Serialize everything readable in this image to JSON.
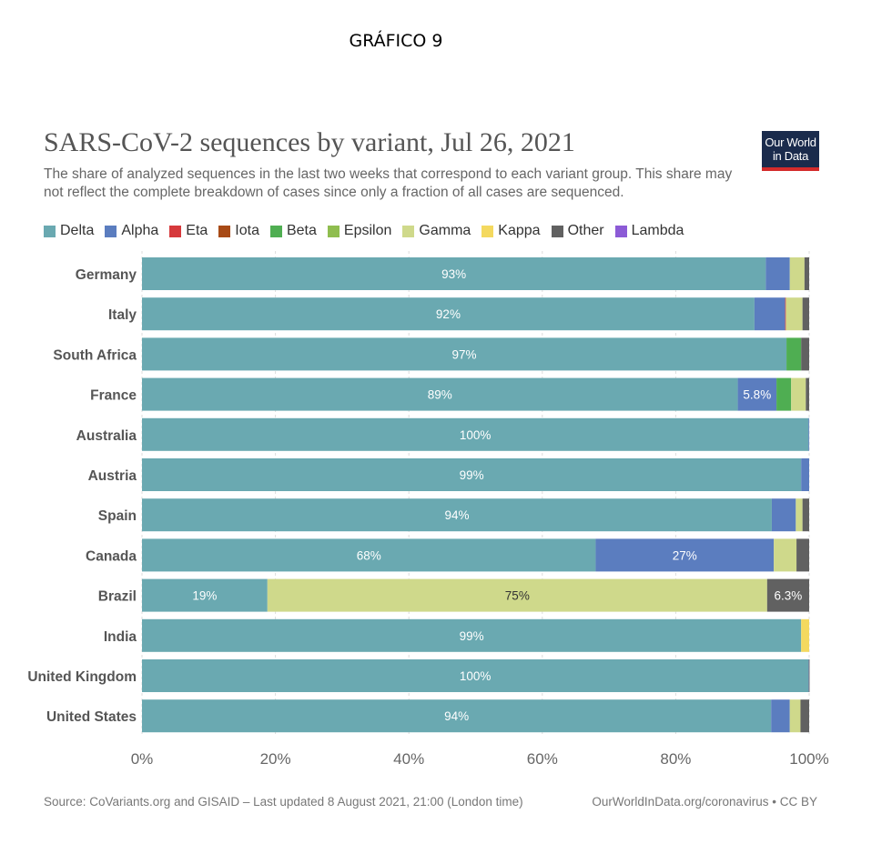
{
  "page": {
    "heading": "GRÁFICO 9"
  },
  "logo": {
    "line1": "Our World",
    "line2": "in Data"
  },
  "footer": {
    "source": "Source: CoVariants.org and GISAID – Last updated 8 August 2021, 21:00 (London time)",
    "credit": "OurWorldInData.org/coronavirus • CC BY"
  },
  "chart_data": {
    "type": "bar",
    "orientation": "horizontal",
    "stacked": true,
    "title": "SARS-CoV-2 sequences by variant, Jul 26, 2021",
    "subtitle": "The share of analyzed sequences in the last two weeks that correspond to each variant group. This share may not reflect the complete breakdown of cases since only a fraction of all cases are sequenced.",
    "legend_position": "top",
    "xlim": [
      0,
      100
    ],
    "x_ticks": [
      0,
      20,
      40,
      60,
      80,
      100
    ],
    "x_tick_labels": [
      "0%",
      "20%",
      "40%",
      "60%",
      "80%",
      "100%"
    ],
    "grid": "vertical-dashed",
    "categories": [
      "Germany",
      "Italy",
      "South Africa",
      "France",
      "Australia",
      "Austria",
      "Spain",
      "Canada",
      "Brazil",
      "India",
      "United Kingdom",
      "United States"
    ],
    "series": [
      {
        "name": "Delta",
        "color": "#6aa9b1",
        "values": [
          93.5,
          91.8,
          96.6,
          89.3,
          99.9,
          98.8,
          94.4,
          68.0,
          18.8,
          98.8,
          99.9,
          94.3
        ]
      },
      {
        "name": "Alpha",
        "color": "#5b7dbf",
        "values": [
          3.6,
          4.6,
          0,
          5.8,
          0.1,
          1.2,
          3.6,
          26.7,
          0,
          0,
          0.05,
          2.8
        ]
      },
      {
        "name": "Eta",
        "color": "#d6393c",
        "values": [
          0,
          0.1,
          0,
          0,
          0,
          0,
          0,
          0,
          0,
          0,
          0,
          0
        ]
      },
      {
        "name": "Iota",
        "color": "#a84a16",
        "values": [
          0,
          0,
          0,
          0,
          0,
          0,
          0,
          0,
          0,
          0,
          0,
          0
        ]
      },
      {
        "name": "Beta",
        "color": "#4fae52",
        "values": [
          0,
          0,
          2.2,
          2.2,
          0,
          0,
          0,
          0,
          0,
          0,
          0,
          0
        ]
      },
      {
        "name": "Epsilon",
        "color": "#8fbd4f",
        "values": [
          0,
          0,
          0,
          0,
          0,
          0,
          0,
          0,
          0,
          0,
          0,
          0
        ]
      },
      {
        "name": "Gamma",
        "color": "#cfd98b",
        "values": [
          2.2,
          2.5,
          0,
          2.2,
          0,
          0,
          1.0,
          3.4,
          74.9,
          0,
          0,
          1.6
        ]
      },
      {
        "name": "Kappa",
        "color": "#f4d95f",
        "values": [
          0,
          0,
          0,
          0,
          0,
          0,
          0,
          0,
          0,
          1.2,
          0,
          0
        ]
      },
      {
        "name": "Other",
        "color": "#616161",
        "values": [
          0.7,
          1.0,
          1.2,
          0.5,
          0,
          0,
          1.0,
          1.9,
          6.3,
          0,
          0.05,
          1.3
        ]
      },
      {
        "name": "Lambda",
        "color": "#8c5bd6",
        "values": [
          0,
          0,
          0,
          0,
          0,
          0,
          0,
          0,
          0,
          0,
          0,
          0
        ]
      }
    ],
    "data_labels": [
      {
        "category": "Germany",
        "series": "Delta",
        "text": "93%"
      },
      {
        "category": "Italy",
        "series": "Delta",
        "text": "92%"
      },
      {
        "category": "South Africa",
        "series": "Delta",
        "text": "97%"
      },
      {
        "category": "France",
        "series": "Delta",
        "text": "89%"
      },
      {
        "category": "France",
        "series": "Alpha",
        "text": "5.8%"
      },
      {
        "category": "Australia",
        "series": "Delta",
        "text": "100%"
      },
      {
        "category": "Austria",
        "series": "Delta",
        "text": "99%"
      },
      {
        "category": "Spain",
        "series": "Delta",
        "text": "94%"
      },
      {
        "category": "Canada",
        "series": "Delta",
        "text": "68%"
      },
      {
        "category": "Canada",
        "series": "Alpha",
        "text": "27%"
      },
      {
        "category": "Brazil",
        "series": "Delta",
        "text": "19%"
      },
      {
        "category": "Brazil",
        "series": "Gamma",
        "text": "75%"
      },
      {
        "category": "Brazil",
        "series": "Other",
        "text": "6.3%"
      },
      {
        "category": "India",
        "series": "Delta",
        "text": "99%"
      },
      {
        "category": "United Kingdom",
        "series": "Delta",
        "text": "100%"
      },
      {
        "category": "United States",
        "series": "Delta",
        "text": "94%"
      }
    ]
  }
}
